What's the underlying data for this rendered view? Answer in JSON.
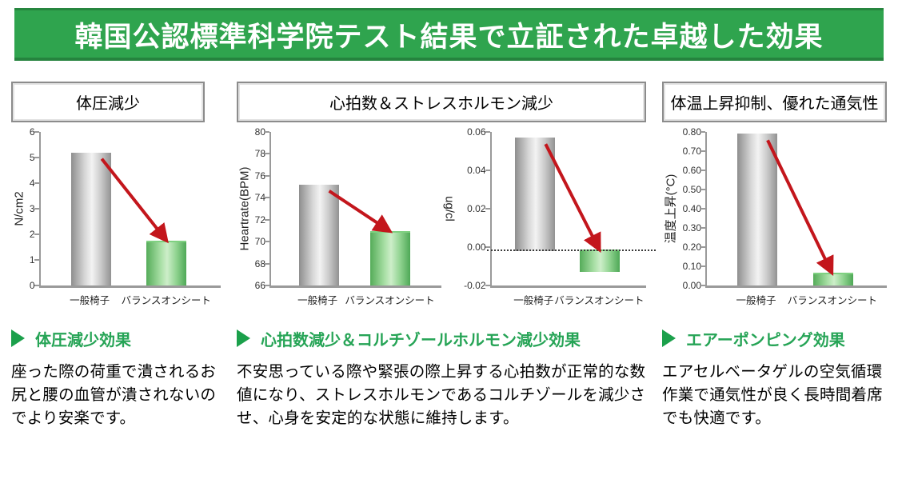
{
  "header": {
    "title": "韓国公認標準科学院テスト結果で立証された卓越した効果"
  },
  "colors": {
    "header_bg": "#2fa44e",
    "header_text": "#ffffff",
    "accent_green": "#26a456",
    "arrow_red": "#c3161c",
    "bar_gray": "#b0b0b0",
    "bar_green": "#6fbf73",
    "axis_gray": "#9a9a9a"
  },
  "sections": [
    {
      "title": "体圧減少",
      "effect_heading": "体圧減少効果",
      "body": "座った際の荷重で潰されるお尻と腰の血管が潰されないのでより安楽です。"
    },
    {
      "title": "心拍数＆ストレスホルモン減少",
      "effect_heading": "心拍数減少＆コルチゾールホルモン減少効果",
      "body": "不安思っている際や緊張の際上昇する心拍数が正常的な数値になり、ストレスホルモンであるコルチゾールを減少させ、心身を安定的な状態に維持します。"
    },
    {
      "title": "体温上昇抑制、優れた通気性",
      "effect_heading": "エアーポンピング効果",
      "body": "エアセルベータゲルの空気循環作業で通気性が良く長時間着席でも快適です。"
    }
  ],
  "chart_data": [
    {
      "type": "bar",
      "title": "体圧減少",
      "ylabel": "N/cm2",
      "categories": [
        "一般椅子",
        "バランスオンシート"
      ],
      "values": [
        5.2,
        1.7
      ],
      "ylim": [
        0,
        6
      ],
      "yticks": [
        0,
        1,
        2,
        3,
        4,
        5,
        6
      ],
      "ytick_labels": [
        "0",
        "1",
        "2",
        "3",
        "4",
        "5",
        "6"
      ],
      "baseline": 0,
      "arrow": true,
      "grid": false,
      "legend": false
    },
    {
      "type": "bar",
      "title": "心拍数減少",
      "ylabel": "Heartrate(BPM)",
      "categories": [
        "一般椅子",
        "バランスオンシート"
      ],
      "values": [
        75.2,
        70.8
      ],
      "ylim": [
        66,
        80
      ],
      "yticks": [
        66,
        68,
        70,
        72,
        74,
        76,
        78,
        80
      ],
      "ytick_labels": [
        "66",
        "68",
        "70",
        "72",
        "74",
        "76",
        "78",
        "80"
      ],
      "baseline": 66,
      "arrow": true,
      "grid": false,
      "legend": false
    },
    {
      "type": "bar",
      "title": "ストレスホルモン（コルチゾール）減少",
      "ylabel": "ug/cl",
      "ylabel_dir": "down",
      "categories": [
        "一般椅子",
        "バランスオンシート"
      ],
      "values": [
        0.057,
        -0.013
      ],
      "ylim": [
        -0.02,
        0.06
      ],
      "yticks": [
        0.06,
        0.04,
        0.02,
        0,
        -0.02
      ],
      "ytick_labels": [
        "0.06",
        "0.04",
        "0.02",
        "0.00",
        "-0.02"
      ],
      "baseline": -0.002,
      "dotted_baseline": true,
      "arrow": true,
      "grid": false,
      "legend": false
    },
    {
      "type": "bar",
      "title": "体温上昇抑制",
      "ylabel": "温度上昇(°C)",
      "categories": [
        "一般椅子",
        "バランスオンシート"
      ],
      "values": [
        0.79,
        0.06
      ],
      "ylim": [
        0,
        0.8
      ],
      "yticks": [
        0,
        0.1,
        0.2,
        0.3,
        0.4,
        0.5,
        0.6,
        0.7,
        0.8
      ],
      "ytick_labels": [
        "0.00",
        "0.10",
        "0.20",
        "0.30",
        "0.40",
        "0.50",
        "0.60",
        "0.70",
        "0.80"
      ],
      "baseline": 0,
      "arrow": true,
      "grid": false,
      "legend": false
    }
  ]
}
